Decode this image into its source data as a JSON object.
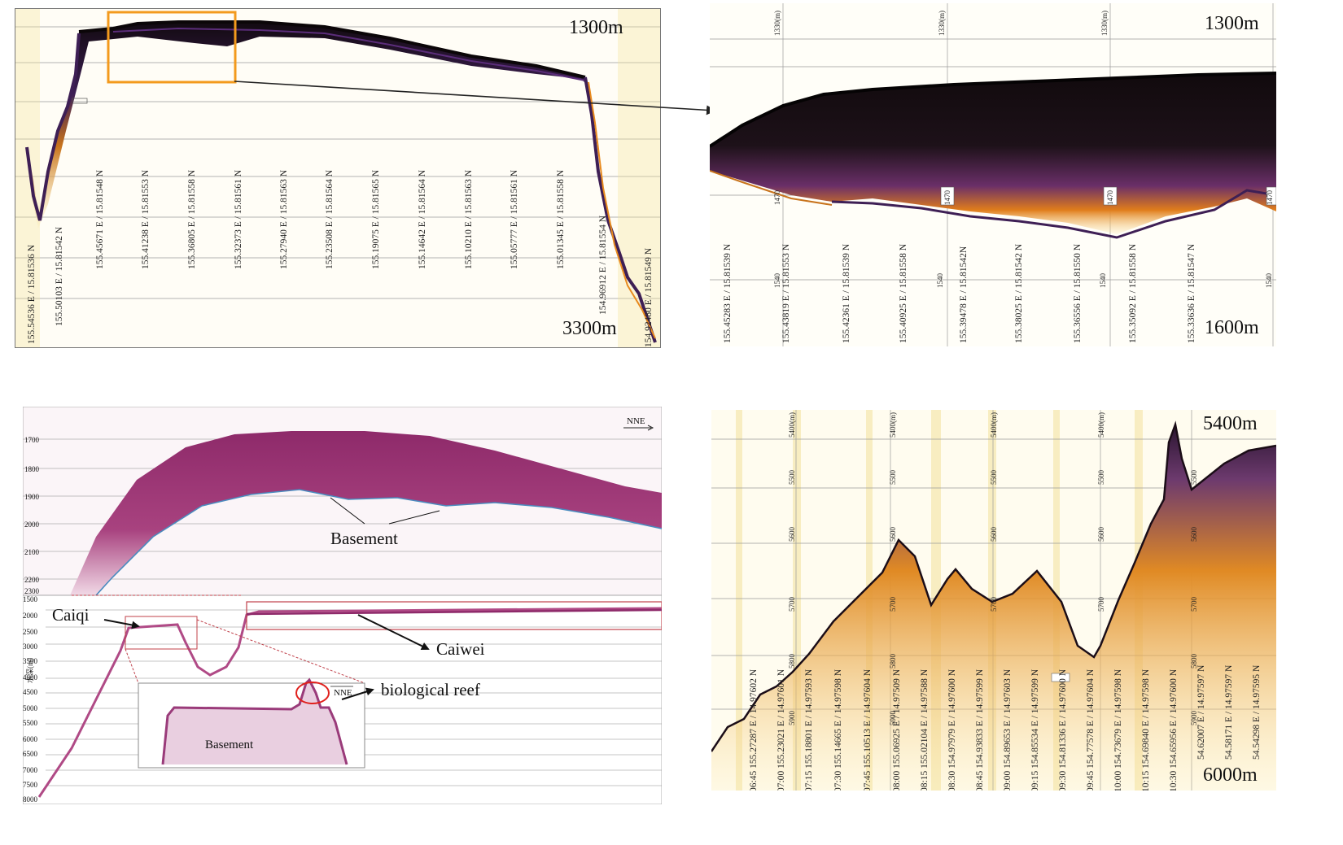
{
  "panel_a": {
    "depth_top": "1300m",
    "depth_bottom": "3300m",
    "coords": [
      "155.54536 E / 15.81536 N",
      "155.50103 E / 15.81542 N",
      "155.45671 E / 15.81548 N",
      "155.41238 E / 15.81553 N",
      "155.36805 E / 15.81558 N",
      "155.32373 E / 15.81561 N",
      "155.27940 E / 15.81563 N",
      "155.23508 E / 15.81564 N",
      "155.19075 E / 15.81565 N",
      "155.14642 E / 15.81564 N",
      "155.10210 E / 15.81563 N",
      "155.05777 E / 15.81561 N",
      "155.01345 E / 15.81558 N",
      "154.96912 E / 15.81554 N",
      "154.92480 E / 15.81549 N"
    ]
  },
  "panel_b": {
    "depth_top": "1300m",
    "depth_bottom": "1600m",
    "scale_top": "1330(m)",
    "scale_mid": "1470",
    "scale_low": "1540",
    "coords": [
      "155.45283 E / 15.81539 N",
      "155.43819 E / 15.81553 N",
      "155.42361 E / 15.81539 N",
      "155.40925 E / 15.81558 N",
      "155.39478 E / 15.81542N",
      "155.38025 E / 15.81542 N",
      "155.36556 E / 15.81550 N",
      "155.35092 E / 15.81558 N",
      "155.33636 E / 15.81547 N"
    ]
  },
  "panel_c": {
    "nne_top": "NNE",
    "nne_inset": "NNE",
    "basement_label": "Basement",
    "basement_inset": "Basement",
    "caiqi": "Caiqi",
    "caiwei": "Caiwei",
    "reef": "biological reef",
    "yaxis_title": "水深(m)",
    "yticks": [
      "1500",
      "2000",
      "2500",
      "3000",
      "3500",
      "4000",
      "4500",
      "5000",
      "5500",
      "6000",
      "6500",
      "7000",
      "7500",
      "8000"
    ],
    "upper_ticks": [
      "1700",
      "1800",
      "1900",
      "2000",
      "2100",
      "2200",
      "2300"
    ]
  },
  "panel_d": {
    "depth_top": "5400m",
    "depth_bottom": "6000m",
    "scale_top": "5400(m)",
    "scale_5500": "5500",
    "scale_5600": "5600",
    "scale_5700": "5700",
    "scale_5800": "5800",
    "scale_5900": "5900",
    "coords": [
      "06:45 155.27287 E / 14.97602 N",
      "07:00 155.23021 E / 14.97601 N",
      "07:15 155.18801 E / 14.97593 N",
      "07:30 155.14665 E / 14.97598 N",
      "07:45 155.10513 E / 14.97604 N",
      "08:00 155.06925 E / 14.97509 N",
      "08:15 155.02104 E / 14.97588 N",
      "08:30 154.97979 E / 14.97600 N",
      "08:45 154.93833 E / 14.97599 N",
      "09:00 154.89653 E / 14.97603 N",
      "09:15 154.85534 E / 14.97599 N",
      "09:30 154.81336 E / 14.97600 N",
      "09:45 154.77578 E / 14.97604 N",
      "10:00 154.73679 E / 14.97598 N",
      "10:15 154.69840 E / 14.97598 N",
      "10:30 154.65956 E / 14.97600 N",
      "54.62007 E / 14.97597 N",
      "54.58171 E / 14.97597 N",
      "54.54298 E / 14.97595 N"
    ]
  },
  "colors": {
    "seismic_dark": "#1a0f14",
    "seismic_purple": "#5b2d7a",
    "seismic_orange": "#e88a1e",
    "seismic_yellow": "#f7d36a",
    "highlight_box": "#f39a1d",
    "c_magenta": "#8e2a6a",
    "reef_circle": "#e0201c"
  }
}
